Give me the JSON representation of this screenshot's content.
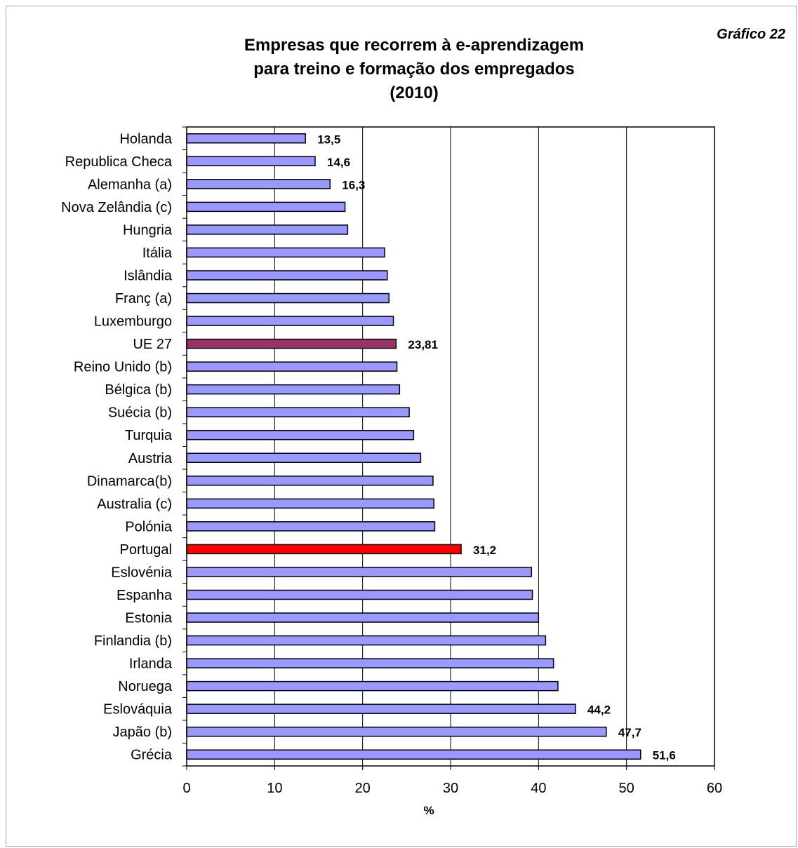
{
  "figure_label": "Gráfico 22",
  "chart_data": {
    "type": "bar",
    "orientation": "horizontal",
    "title_lines": [
      "Empresas que recorrem à e-aprendizagem",
      "para treino e formação dos empregados",
      "(2010)"
    ],
    "xlabel": "%",
    "ylabel": "",
    "xlim": [
      0,
      60
    ],
    "xticks": [
      "0",
      "10",
      "20",
      "30",
      "40",
      "50",
      "60"
    ],
    "grid": true,
    "categories": [
      "Holanda",
      "Republica Checa",
      "Alemanha (a)",
      "Nova Zelândia (c)",
      "Hungria",
      "Itália",
      "Islândia",
      "Franç (a)",
      "Luxemburgo",
      "UE 27",
      "Reino Unido (b)",
      "Bélgica (b)",
      "Suécia (b)",
      "Turquia",
      "Austria",
      "Dinamarca(b)",
      "Australia (c)",
      "Polónia",
      "Portugal",
      "Eslovénia",
      "Espanha",
      "Estonia",
      "Finlandia (b)",
      "Irlanda",
      "Noruega",
      "Eslováquia",
      "Japão (b)",
      "Grécia"
    ],
    "values": [
      13.5,
      14.6,
      16.3,
      18.0,
      18.3,
      22.5,
      22.8,
      23.0,
      23.5,
      23.81,
      23.9,
      24.2,
      25.3,
      25.8,
      26.6,
      28.0,
      28.1,
      28.2,
      31.2,
      39.2,
      39.3,
      40.0,
      40.8,
      41.7,
      42.2,
      44.2,
      47.7,
      51.6
    ],
    "data_labels": [
      "13,5",
      "14,6",
      "16,3",
      "",
      "",
      "",
      "",
      "",
      "",
      "23,81",
      "",
      "",
      "",
      "",
      "",
      "",
      "",
      "",
      "31,2",
      "",
      "",
      "",
      "",
      "",
      "",
      "44,2",
      "47,7",
      "51,6"
    ],
    "colors": {
      "default": "#9999ff",
      "UE 27": "#993366",
      "Portugal": "#ff0000"
    }
  }
}
